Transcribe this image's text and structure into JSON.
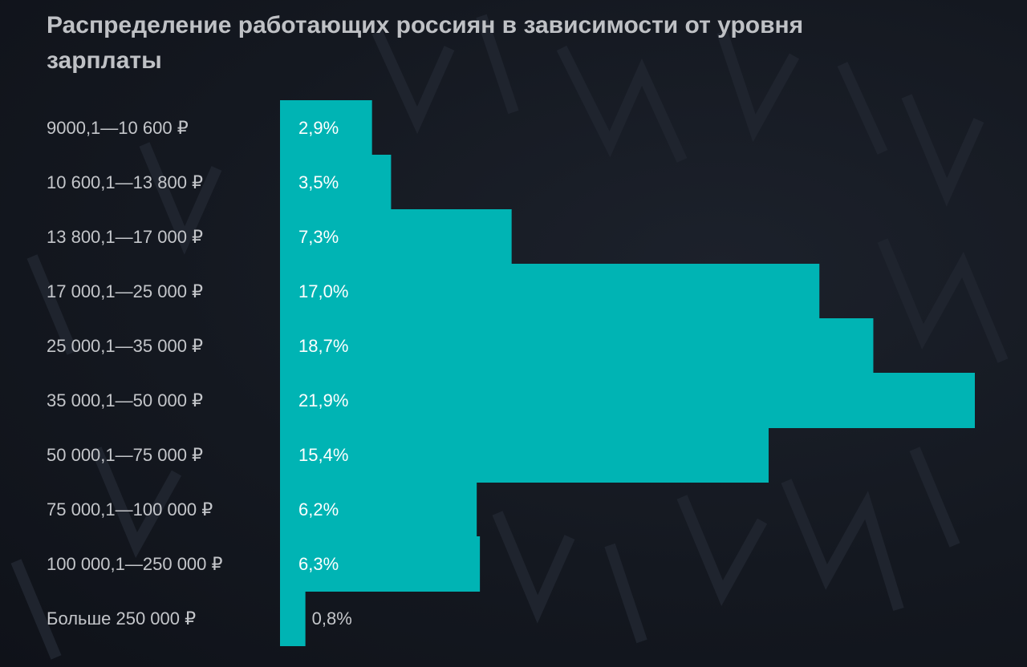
{
  "title": "Распределение работающих россиян в зависимости от уровня зарплаты",
  "colors": {
    "bar": "#00b4b4",
    "background": "#12161f",
    "label": "#c4c6ca",
    "value": "#ffffff"
  },
  "chart_data": {
    "type": "bar",
    "orientation": "horizontal",
    "title": "Распределение работающих россиян в зависимости от уровня зарплаты",
    "xlabel": "",
    "ylabel": "",
    "unit": "%",
    "grid": false,
    "categories": [
      "9000,1—10 600 ₽",
      "10 600,1—13 800 ₽",
      "13 800,1—17 000 ₽",
      "17 000,1—25 000 ₽",
      "25 000,1—35 000 ₽",
      "35 000,1—50 000 ₽",
      "50 000,1—75 000 ₽",
      "75 000,1—100 000 ₽",
      "100 000,1—250 000 ₽",
      "Больше 250 000 ₽"
    ],
    "values": [
      2.9,
      3.5,
      7.3,
      17.0,
      18.7,
      21.9,
      15.4,
      6.2,
      6.3,
      0.8
    ],
    "value_labels": [
      "2,9%",
      "3,5%",
      "7,3%",
      "17,0%",
      "18,7%",
      "21,9%",
      "15,4%",
      "6,2%",
      "6,3%",
      "0,8%"
    ]
  }
}
